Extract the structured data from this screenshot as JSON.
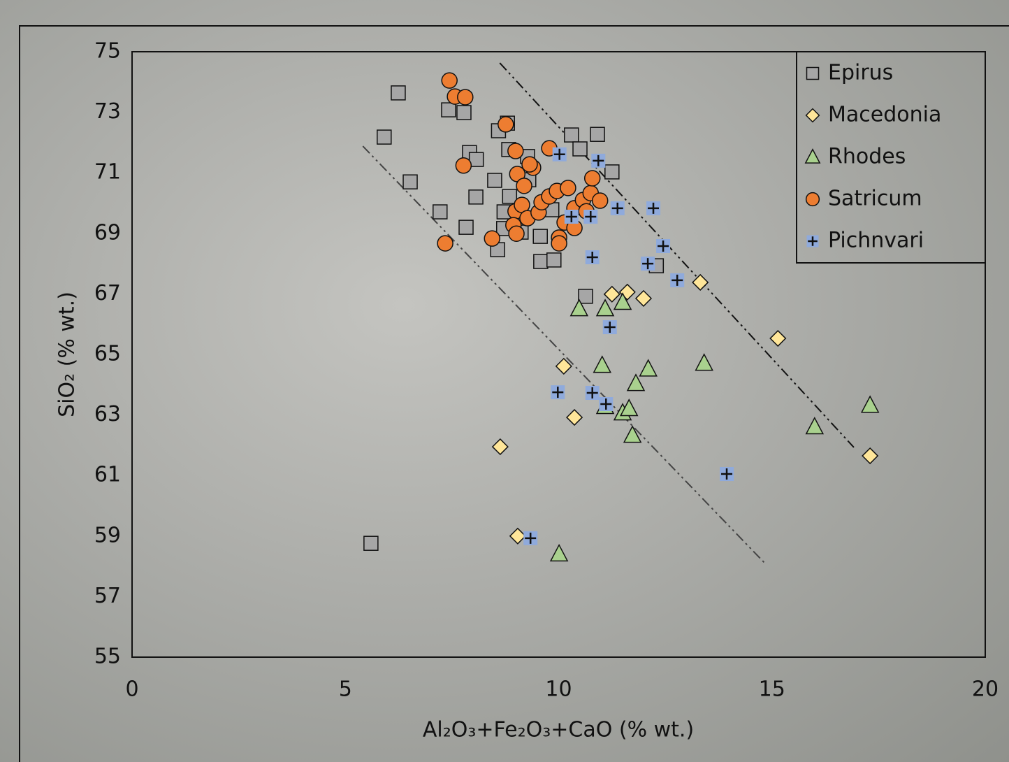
{
  "chart_data": {
    "type": "scatter",
    "x_label": "Al₂O₃+Fe₂O₃+CaO (% wt.)",
    "y_label": "SiO₂ (% wt.)",
    "xlim": [
      0,
      20
    ],
    "xticks": [
      0,
      5,
      10,
      15,
      20
    ],
    "ylim": [
      55,
      75
    ],
    "yticks": [
      55,
      57,
      59,
      61,
      63,
      65,
      67,
      69,
      71,
      73,
      75
    ],
    "grid": false,
    "legend_position": "upper-right",
    "series": [
      {
        "name": "Epirus",
        "color": "#a6a6a6",
        "marker": "square",
        "x": [
          6.24,
          5.91,
          7.42,
          7.78,
          6.52,
          7.22,
          7.91,
          8.07,
          8.06,
          7.83,
          8.57,
          8.59,
          8.8,
          8.83,
          8.5,
          8.85,
          8.72,
          8.71,
          9.12,
          9.27,
          9.3,
          9.57,
          9.58,
          9.89,
          9.84,
          10.3,
          10.5,
          10.91,
          11.25,
          10.63,
          12.29,
          5.6
        ],
        "values": [
          73.64,
          72.18,
          73.08,
          72.99,
          70.7,
          69.71,
          71.67,
          71.44,
          70.2,
          69.2,
          68.46,
          72.39,
          72.64,
          71.77,
          70.75,
          70.22,
          69.71,
          69.16,
          69.04,
          71.54,
          70.77,
          68.9,
          68.07,
          68.12,
          69.78,
          72.25,
          71.79,
          72.27,
          71.03,
          66.92,
          67.93,
          58.76
        ]
      },
      {
        "name": "Macedonia",
        "color": "#ffe699",
        "marker": "diamond",
        "x": [
          13.32,
          15.14,
          11.25,
          11.61,
          11.99,
          10.12,
          10.37,
          8.63,
          9.04,
          17.3
        ],
        "values": [
          67.38,
          65.53,
          66.99,
          67.06,
          66.85,
          64.61,
          62.92,
          61.95,
          59.0,
          61.65
        ]
      },
      {
        "name": "Rhodes",
        "color": "#a9d18e",
        "marker": "triangle",
        "x": [
          10.48,
          11.09,
          11.5,
          11.02,
          13.41,
          12.1,
          11.81,
          11.09,
          11.5,
          11.65,
          11.73,
          16.0,
          17.3,
          10.01
        ],
        "values": [
          66.5,
          66.5,
          66.71,
          64.63,
          64.7,
          64.51,
          64.03,
          63.27,
          63.06,
          63.2,
          62.32,
          62.6,
          63.31,
          58.4
        ]
      },
      {
        "name": "Satricum",
        "color": "#ed7d31",
        "marker": "circle",
        "x": [
          7.44,
          7.57,
          7.81,
          7.77,
          7.34,
          8.76,
          8.99,
          9.03,
          9.4,
          9.32,
          9.19,
          8.99,
          9.14,
          8.94,
          9.01,
          9.27,
          9.53,
          9.6,
          9.78,
          9.96,
          10.22,
          10.01,
          10.01,
          9.78,
          10.14,
          10.37,
          10.37,
          10.57,
          10.75,
          10.79,
          10.97,
          10.65,
          8.44
        ],
        "values": [
          74.05,
          73.52,
          73.5,
          71.24,
          68.67,
          72.6,
          71.72,
          70.96,
          71.17,
          71.28,
          70.57,
          69.73,
          69.94,
          69.27,
          68.99,
          69.5,
          69.69,
          70.03,
          70.22,
          70.4,
          70.5,
          68.86,
          68.67,
          71.81,
          69.36,
          69.18,
          69.83,
          70.1,
          70.33,
          70.82,
          70.08,
          69.73,
          68.83
        ]
      },
      {
        "name": "Pichnvari",
        "color": "#8faadc",
        "marker": "plus",
        "x": [
          10.02,
          10.93,
          11.38,
          12.22,
          10.3,
          10.75,
          10.79,
          12.45,
          12.09,
          12.78,
          11.2,
          9.98,
          10.79,
          11.11,
          13.94,
          9.34
        ],
        "values": [
          71.61,
          71.4,
          69.83,
          69.83,
          69.55,
          69.55,
          68.21,
          68.58,
          68.0,
          67.45,
          65.9,
          63.75,
          63.73,
          63.36,
          61.05,
          58.93
        ]
      }
    ],
    "trend_lines": [
      {
        "x": [
          8.62,
          16.92
        ],
        "y": [
          74.63,
          61.93
        ]
      },
      {
        "x": [
          5.41,
          14.87
        ],
        "y": [
          71.88,
          58.05
        ]
      }
    ]
  }
}
